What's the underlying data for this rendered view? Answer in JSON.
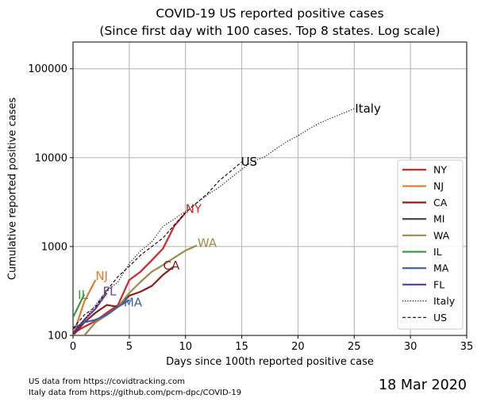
{
  "title_line1": "COVID-19 US reported positive cases",
  "title_line2": "(Since first day with 100 cases. Top 8 states. Log scale)",
  "xlabel": "Days since 100th reported positive case",
  "ylabel": "Cumulative reported positive cases",
  "footer": {
    "source_us": "US data from https://covidtracking.com",
    "source_italy": "Italy data from https://github.com/pcm-dpc/COVID-19",
    "date": "18 Mar 2020"
  },
  "colors": {
    "NY": "#cc2a2a",
    "NJ": "#e07b2e",
    "CA": "#8b1c1c",
    "MI": "#4d4d4d",
    "WA": "#9c8b46",
    "IL": "#3c9a45",
    "MA": "#3a5fa8",
    "FL": "#6a3f9a",
    "Italy": "#000000",
    "US": "#000000",
    "grid": "#b0b0b0"
  },
  "chart_data": {
    "type": "line",
    "title": "COVID-19 US reported positive cases\n(Since first day with 100 cases. Top 8 states. Log scale)",
    "xlabel": "Days since 100th reported positive case",
    "ylabel": "Cumulative reported positive cases",
    "xlim": [
      0,
      35
    ],
    "ylim": [
      100,
      200000
    ],
    "yscale": "log",
    "xticks": [
      0,
      5,
      10,
      15,
      20,
      25,
      30,
      35
    ],
    "yticks": [
      100,
      1000,
      10000,
      100000
    ],
    "ytick_labels": [
      "100",
      "1000",
      "10000",
      "100000"
    ],
    "grid": true,
    "legend_position": "lower right",
    "series": [
      {
        "name": "NY",
        "style": "solid",
        "label": "NY",
        "x": [
          0,
          1,
          2,
          3,
          4,
          5,
          6,
          7,
          8,
          9,
          10
        ],
        "y": [
          105,
          125,
          145,
          180,
          220,
          420,
          520,
          700,
          950,
          1700,
          2400
        ]
      },
      {
        "name": "NJ",
        "style": "solid",
        "label": "NJ",
        "x": [
          0,
          1,
          2
        ],
        "y": [
          100,
          240,
          420
        ]
      },
      {
        "name": "CA",
        "style": "solid",
        "label": "CA",
        "x": [
          0,
          1,
          2,
          3,
          4,
          5,
          6,
          7,
          8,
          9
        ],
        "y": [
          100,
          140,
          180,
          220,
          210,
          280,
          310,
          360,
          480,
          600
        ]
      },
      {
        "name": "MI",
        "style": "solid",
        "label": "",
        "x": [
          0
        ],
        "y": [
          110
        ]
      },
      {
        "name": "WA",
        "style": "solid",
        "label": "WA",
        "x": [
          0,
          1,
          2,
          3,
          4,
          5,
          6,
          7,
          8,
          9,
          10,
          11
        ],
        "y": [
          100,
          100,
          140,
          170,
          210,
          300,
          400,
          520,
          620,
          750,
          900,
          1030
        ]
      },
      {
        "name": "IL",
        "style": "solid",
        "label": "IL",
        "x": [
          0,
          1
        ],
        "y": [
          160,
          290
        ]
      },
      {
        "name": "MA",
        "style": "solid",
        "label": "MA",
        "x": [
          0,
          1,
          2,
          3,
          4,
          5
        ],
        "y": [
          120,
          140,
          150,
          170,
          210,
          250
        ]
      },
      {
        "name": "FL",
        "style": "solid",
        "label": "FL",
        "x": [
          0,
          1,
          2,
          3
        ],
        "y": [
          105,
          150,
          200,
          300
        ]
      },
      {
        "name": "Italy",
        "style": "dotted",
        "label": "Italy",
        "x": [
          0,
          1,
          2,
          3,
          4,
          5,
          6,
          7,
          8,
          9,
          10,
          11,
          12,
          13,
          14,
          15,
          16,
          17,
          18,
          19,
          20,
          21,
          22,
          23,
          24,
          25
        ],
        "y": [
          105,
          150,
          220,
          320,
          400,
          650,
          890,
          1130,
          1690,
          2030,
          2500,
          3090,
          3860,
          4640,
          5880,
          7380,
          9170,
          10150,
          12460,
          15110,
          17660,
          21160,
          24750,
          27980,
          31500,
          35700
        ]
      },
      {
        "name": "US",
        "style": "dashed",
        "label": "US",
        "x": [
          0,
          1,
          2,
          3,
          4,
          5,
          6,
          7,
          8,
          9,
          10,
          11,
          12,
          13,
          14,
          15
        ],
        "y": [
          120,
          170,
          210,
          320,
          460,
          600,
          800,
          1000,
          1250,
          1750,
          2400,
          3100,
          4000,
          5500,
          7000,
          9000
        ]
      }
    ]
  }
}
